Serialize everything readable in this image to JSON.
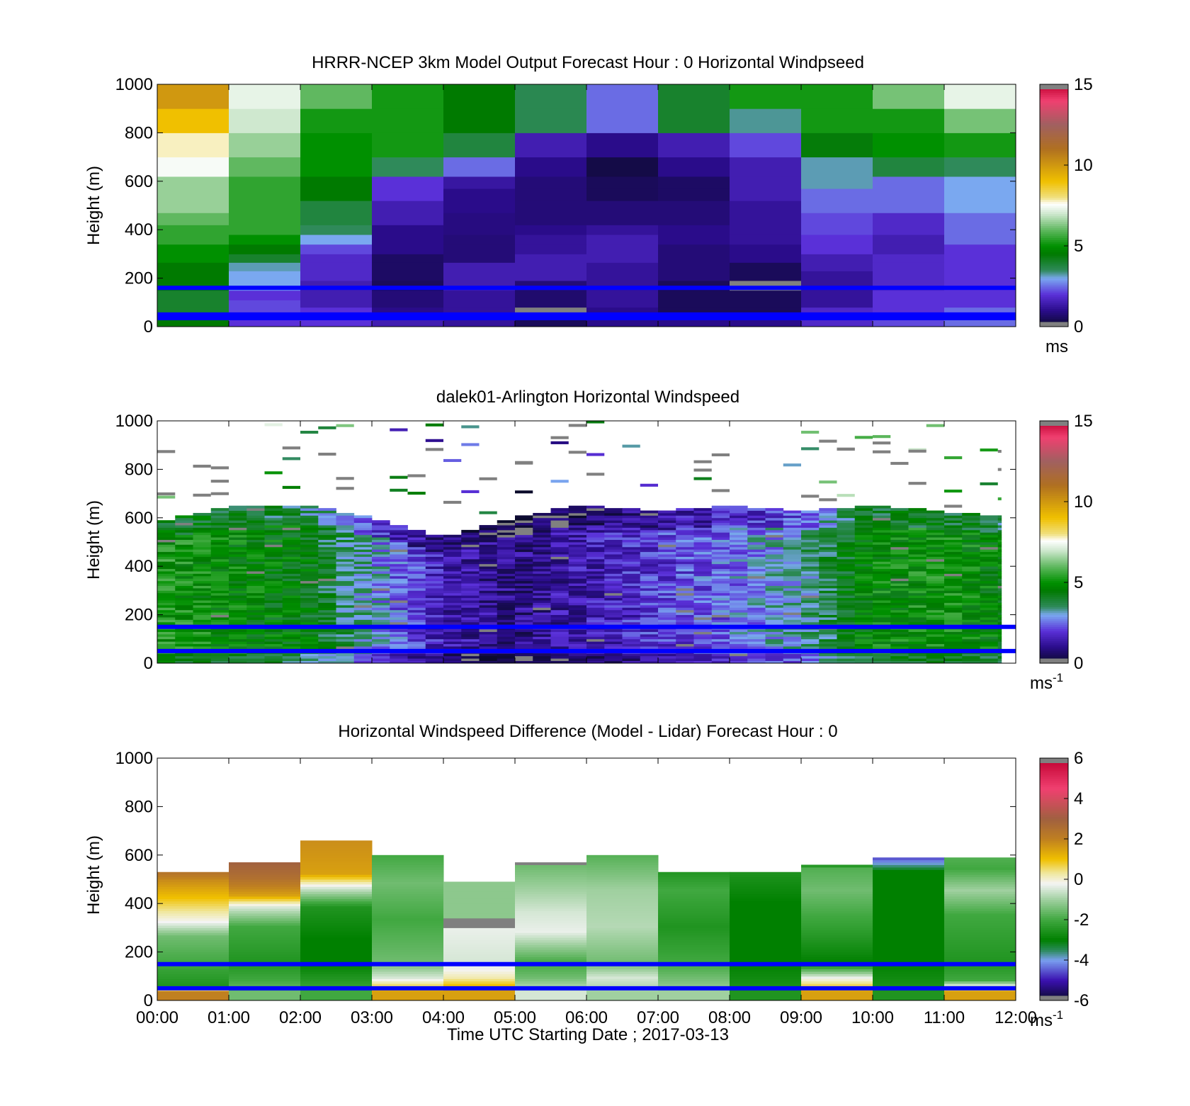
{
  "colors": {
    "ref_line": "#0000ff",
    "missing": "#808080"
  },
  "chart_data": [
    {
      "type": "heatmap",
      "title": "HRRR-NCEP 3km Model Output   Forecast Hour : 0 Horizontal Windpseed",
      "ylabel": "Height (m)",
      "xlabel": "",
      "ylim": [
        0,
        1000
      ],
      "yticks": [
        "0",
        "200",
        "400",
        "600",
        "800",
        "1000"
      ],
      "xlim": [
        0,
        12
      ],
      "colorbar": {
        "range": [
          0,
          15
        ],
        "ticks": [
          "0",
          "5",
          "10",
          "15"
        ],
        "unit": "ms",
        "unit_sup": "",
        "palette": "speed"
      },
      "reference_lines_m": [
        160,
        50,
        35
      ],
      "levels": [
        0,
        35,
        55,
        80,
        110,
        150,
        190,
        230,
        265,
        300,
        340,
        380,
        420,
        470,
        520,
        570,
        620,
        700,
        800,
        900,
        1000
      ],
      "columns": [
        [
          3,
          4.5,
          4,
          4,
          4,
          4,
          4.5,
          4.5,
          4.5,
          5,
          5,
          5.5,
          5.5,
          6,
          6.5,
          6.5,
          6.5,
          7.5,
          7.8,
          9,
          10
        ],
        [
          3.5,
          2,
          2.2,
          2.2,
          2.2,
          2,
          3,
          3,
          3.2,
          4,
          4.5,
          5,
          5.5,
          5.5,
          5.5,
          5.5,
          5.5,
          6,
          6.5,
          7,
          7.3
        ],
        [
          3.5,
          2,
          2,
          2,
          1.5,
          1.5,
          1.5,
          1.8,
          1.8,
          1.8,
          2.2,
          3,
          3.5,
          3.8,
          3.8,
          4.5,
          4.5,
          5,
          5,
          5.2,
          6
        ],
        [
          3.5,
          1.5,
          1.5,
          1,
          0.8,
          0.8,
          0.5,
          0.6,
          0.6,
          0.6,
          1,
          1,
          1,
          1.5,
          1.5,
          2,
          2,
          3.5,
          5.2,
          5.2,
          5.2
        ],
        [
          3.5,
          1.2,
          1.2,
          1.2,
          1.2,
          1.2,
          1.5,
          1.5,
          1.5,
          0.8,
          0.8,
          0.8,
          0.9,
          0.9,
          1,
          1,
          1.3,
          2.5,
          3.8,
          4.5,
          4.5
        ],
        [
          3.5,
          0.5,
          0.5,
          -1,
          0.7,
          0.7,
          0.8,
          1.5,
          1.5,
          1.5,
          1.2,
          1.2,
          1,
          0.8,
          0.8,
          0.8,
          0.8,
          1,
          1.5,
          3.6,
          3.6
        ],
        [
          3.5,
          1,
          1,
          1,
          1.2,
          1.2,
          1.2,
          1.2,
          1.2,
          1.5,
          1.5,
          1.5,
          1.2,
          0.8,
          0.8,
          0.5,
          0.5,
          0.3,
          1,
          2.5,
          2.5
        ],
        [
          3.5,
          1,
          1,
          0.5,
          0.5,
          0.5,
          0.5,
          0.8,
          0.8,
          0.8,
          0.8,
          1,
          1,
          0.8,
          0.8,
          0.6,
          0.6,
          1,
          1.5,
          4,
          4
        ],
        [
          3.5,
          1,
          1,
          0.5,
          0.5,
          0.5,
          -1,
          0.5,
          0.5,
          1,
          1,
          1.2,
          1.2,
          1.2,
          1.2,
          1.5,
          1.5,
          1.5,
          2.2,
          3.3,
          5.2
        ],
        [
          3.5,
          1.8,
          1.8,
          1.8,
          1.2,
          1.2,
          1.2,
          1.2,
          1.5,
          1.5,
          2,
          2,
          2.2,
          2.2,
          2.5,
          2.5,
          3.2,
          3.2,
          4.4,
          5.2,
          5.2
        ],
        [
          3.5,
          2.2,
          2.2,
          2,
          2,
          2,
          1.8,
          1.8,
          1.8,
          1.8,
          1.5,
          1.5,
          1.8,
          1.8,
          2.5,
          2.5,
          2.5,
          3.8,
          5,
          5.2,
          6.2
        ],
        [
          3.5,
          2.5,
          2.5,
          2.5,
          2,
          2,
          2,
          2,
          2,
          2,
          2,
          2.5,
          2.5,
          2.5,
          3,
          3,
          3,
          3.5,
          5.2,
          6.2,
          7.3
        ]
      ]
    },
    {
      "type": "heatmap",
      "title": "dalek01-Arlington  Horizontal Windspeed",
      "ylabel": "Height (m)",
      "xlabel": "",
      "ylim": [
        0,
        1000
      ],
      "yticks": [
        "0",
        "200",
        "400",
        "600",
        "800",
        "1000"
      ],
      "xlim": [
        0,
        12
      ],
      "colorbar": {
        "range": [
          0,
          15
        ],
        "ticks": [
          "0",
          "5",
          "10",
          "15"
        ],
        "unit": "ms",
        "unit_sup": "-1",
        "palette": "speed"
      },
      "reference_lines_m": [
        150,
        50
      ],
      "profiles_hourly": {
        "top_m": [
          580,
          640,
          650,
          600,
          520,
          600,
          650,
          620,
          650,
          620,
          650,
          620,
          600
        ],
        "low_level_speed": [
          5.2,
          4.8,
          4.5,
          3.0,
          1.5,
          1.0,
          1.5,
          2.0,
          2.5,
          3.2,
          4.8,
          5.0,
          4.5
        ]
      }
    },
    {
      "type": "heatmap",
      "title": "Horizontal Windspeed Difference (Model - Lidar) Forecast Hour : 0",
      "ylabel": "Height (m)",
      "xlabel": "Time UTC  Starting Date ; 2017-03-13",
      "ylim": [
        0,
        1000
      ],
      "yticks": [
        "0",
        "200",
        "400",
        "600",
        "800",
        "1000"
      ],
      "xlim": [
        0,
        12
      ],
      "xticks": [
        "00:00",
        "01:00",
        "02:00",
        "03:00",
        "04:00",
        "05:00",
        "06:00",
        "07:00",
        "08:00",
        "09:00",
        "10:00",
        "11:00",
        "12:00"
      ],
      "colorbar": {
        "range": [
          -6,
          6
        ],
        "ticks": [
          "-6",
          "-4",
          "-2",
          "0",
          "2",
          "4",
          "6"
        ],
        "unit": "ms",
        "unit_sup": "-1",
        "palette": "diff"
      },
      "reference_lines_m": [
        150,
        50
      ],
      "hourly_top_m": [
        530,
        570,
        660,
        600,
        490,
        570,
        600,
        530,
        530,
        560,
        590,
        590
      ],
      "hourly_diff": [
        [
          [
            30,
            2.0
          ],
          [
            60,
            -2.5
          ],
          [
            150,
            -2.0
          ],
          [
            260,
            -1.5
          ],
          [
            320,
            -0.2
          ],
          [
            420,
            1.0
          ],
          [
            490,
            1.8
          ],
          [
            530,
            2.5
          ]
        ],
        [
          [
            30,
            -1.5
          ],
          [
            80,
            -2.0
          ],
          [
            150,
            -2.5
          ],
          [
            300,
            -2.0
          ],
          [
            380,
            -0.5
          ],
          [
            430,
            1.5
          ],
          [
            500,
            2.5
          ],
          [
            570,
            3.0
          ]
        ],
        [
          [
            30,
            -2.0
          ],
          [
            150,
            -3.0
          ],
          [
            250,
            -3.0
          ],
          [
            380,
            -2.5
          ],
          [
            460,
            -0.5
          ],
          [
            520,
            1.5
          ],
          [
            660,
            1.8
          ]
        ],
        [
          [
            30,
            1.5
          ],
          [
            90,
            -0.5
          ],
          [
            150,
            -1.5
          ],
          [
            330,
            -2.0
          ],
          [
            480,
            -1.5
          ],
          [
            600,
            -2.0
          ]
        ],
        [
          [
            40,
            1.5
          ],
          [
            90,
            0.2
          ],
          [
            150,
            -0.5
          ],
          [
            290,
            -0.3
          ],
          [
            330,
            99
          ],
          [
            480,
            -1.2
          ],
          [
            490,
            99
          ]
        ],
        [
          [
            30,
            -0.5
          ],
          [
            90,
            -1.5
          ],
          [
            150,
            -2.0
          ],
          [
            280,
            -0.3
          ],
          [
            360,
            -0.5
          ],
          [
            550,
            -1.5
          ],
          [
            570,
            99
          ]
        ],
        [
          [
            30,
            -1.0
          ],
          [
            90,
            -0.5
          ],
          [
            150,
            -1.5
          ],
          [
            300,
            -0.8
          ],
          [
            450,
            -1.0
          ],
          [
            600,
            -1.8
          ]
        ],
        [
          [
            30,
            -1.0
          ],
          [
            150,
            -2.0
          ],
          [
            300,
            -2.5
          ],
          [
            450,
            -2.0
          ],
          [
            530,
            -2.5
          ]
        ],
        [
          [
            30,
            -2.5
          ],
          [
            150,
            -3.0
          ],
          [
            230,
            -3.0
          ],
          [
            400,
            -3.0
          ],
          [
            530,
            -2.5
          ]
        ],
        [
          [
            30,
            1.5
          ],
          [
            90,
            -0.3
          ],
          [
            150,
            -3.0
          ],
          [
            300,
            -2.2
          ],
          [
            450,
            -1.5
          ],
          [
            540,
            -1.8
          ],
          [
            560,
            -3.0
          ],
          [
            570,
            -1.5
          ]
        ],
        [
          [
            30,
            -2.5
          ],
          [
            150,
            -3.0
          ],
          [
            300,
            -3.0
          ],
          [
            450,
            -3.0
          ],
          [
            530,
            -3.0
          ],
          [
            580,
            -4.5
          ],
          [
            590,
            -4.8
          ],
          [
            640,
            99
          ]
        ],
        [
          [
            30,
            1.5
          ],
          [
            80,
            -2.0
          ],
          [
            150,
            -2.5
          ],
          [
            350,
            -2.0
          ],
          [
            450,
            -1.0
          ],
          [
            540,
            -2.0
          ],
          [
            590,
            -1.8
          ]
        ]
      ]
    }
  ]
}
